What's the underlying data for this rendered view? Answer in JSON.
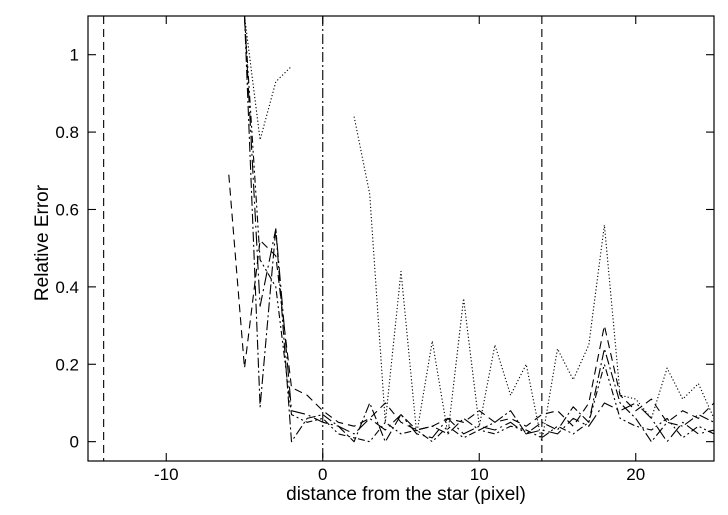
{
  "chart_data": {
    "type": "line",
    "title": "",
    "xlabel": "distance from the star (pixel)",
    "ylabel": "Relative Error",
    "xlim": [
      -15,
      25
    ],
    "ylim": [
      -0.05,
      1.1
    ],
    "xticks": [
      -10,
      0,
      10,
      20
    ],
    "xtick_labels": [
      "-10",
      "0",
      "10",
      "20"
    ],
    "yticks": [
      0,
      0.2,
      0.4,
      0.6,
      0.8,
      1
    ],
    "ytick_labels": [
      "0",
      "0.2",
      "0.4",
      "0.6",
      "0.8",
      "1"
    ],
    "grid": false,
    "legend": "none",
    "vertical_lines": [
      {
        "x": -14,
        "style": "dashed"
      },
      {
        "x": 0,
        "style": "dashdot"
      },
      {
        "x": 14,
        "style": "dashed"
      }
    ],
    "series": [
      {
        "style": "dotted",
        "segments": [
          {
            "x": [
              -5,
              -4,
              -3,
              -2
            ],
            "y": [
              1.1,
              0.78,
              0.93,
              0.97
            ]
          },
          {
            "x": [
              2,
              3,
              4,
              5,
              6,
              7,
              8,
              9,
              10,
              11,
              12,
              13,
              14,
              15,
              16,
              17,
              18,
              19,
              20,
              21,
              22,
              23,
              24,
              25
            ],
            "y": [
              0.84,
              0.64,
              0.05,
              0.44,
              0.02,
              0.26,
              0.02,
              0.37,
              0.04,
              0.25,
              0.12,
              0.2,
              0.0,
              0.24,
              0.16,
              0.25,
              0.56,
              0.12,
              0.11,
              0.06,
              0.19,
              0.11,
              0.15,
              0.06
            ]
          }
        ]
      },
      {
        "style": "dashed",
        "segments": [
          {
            "x": [
              -6,
              -5,
              -4,
              -3,
              -2,
              -1,
              0,
              1,
              2,
              3,
              4,
              5,
              6,
              7,
              8,
              9,
              10,
              11,
              12,
              13,
              14,
              15,
              16,
              17,
              18,
              19,
              20,
              21,
              22,
              23,
              24,
              25
            ],
            "y": [
              0.69,
              0.19,
              0.52,
              0.48,
              0.14,
              0.12,
              0.08,
              0.05,
              0.04,
              0.06,
              0.1,
              0.05,
              0.03,
              0.04,
              0.06,
              0.05,
              0.08,
              0.05,
              0.06,
              0.04,
              0.07,
              0.08,
              0.04,
              0.1,
              0.3,
              0.12,
              0.08,
              0.11,
              0.05,
              0.08,
              0.06,
              0.1
            ]
          }
        ]
      },
      {
        "style": "dashdot",
        "segments": [
          {
            "x": [
              -5,
              -4,
              -3,
              -2,
              -1,
              0,
              1,
              2,
              3,
              4,
              5,
              6,
              7,
              8,
              9,
              10,
              11,
              12,
              13,
              14,
              15,
              16,
              17,
              18,
              19,
              20,
              21,
              22,
              23,
              24,
              25
            ],
            "y": [
              1.1,
              0.09,
              0.55,
              0.0,
              0.06,
              0.07,
              0.04,
              0.0,
              0.1,
              0.0,
              0.07,
              0.03,
              0.04,
              0.02,
              0.06,
              0.03,
              0.05,
              0.08,
              0.02,
              0.05,
              0.03,
              0.09,
              0.05,
              0.24,
              0.1,
              0.06,
              0.0,
              0.05,
              0.04,
              0.07,
              0.05
            ]
          }
        ]
      },
      {
        "style": "longdash-dot",
        "segments": [
          {
            "x": [
              -5,
              -4,
              -3,
              -2,
              -1,
              0,
              1,
              2,
              3,
              4,
              5,
              6,
              7,
              8,
              9,
              10,
              11,
              12,
              13,
              14,
              15,
              16,
              17,
              18,
              19,
              20,
              21,
              22,
              23,
              24,
              25
            ],
            "y": [
              1.1,
              0.35,
              0.55,
              0.08,
              0.07,
              0.05,
              0.04,
              0.02,
              0.06,
              0.03,
              0.07,
              0.02,
              0.01,
              0.06,
              0.02,
              0.04,
              0.03,
              0.05,
              0.02,
              0.03,
              0.02,
              0.06,
              0.04,
              0.1,
              0.08,
              0.1,
              0.06,
              0.0,
              0.05,
              0.02,
              0.03
            ]
          }
        ]
      },
      {
        "style": "dash-dot-dot",
        "segments": [
          {
            "x": [
              -5,
              -4,
              -3,
              -2,
              -1,
              0,
              1,
              2,
              3,
              4,
              5,
              6,
              7,
              8,
              9,
              10,
              11,
              12,
              13,
              14,
              15,
              16,
              17,
              18,
              19,
              20,
              21,
              22,
              23,
              24,
              25
            ],
            "y": [
              1.1,
              0.47,
              0.4,
              0.07,
              0.05,
              0.06,
              0.02,
              0.01,
              0.0,
              0.05,
              0.02,
              0.03,
              0.0,
              0.04,
              0.01,
              0.03,
              0.02,
              0.04,
              0.03,
              0.01,
              0.04,
              0.02,
              0.05,
              0.2,
              0.06,
              0.04,
              0.03,
              0.06,
              0.01,
              0.04,
              0.02
            ]
          }
        ]
      }
    ]
  }
}
